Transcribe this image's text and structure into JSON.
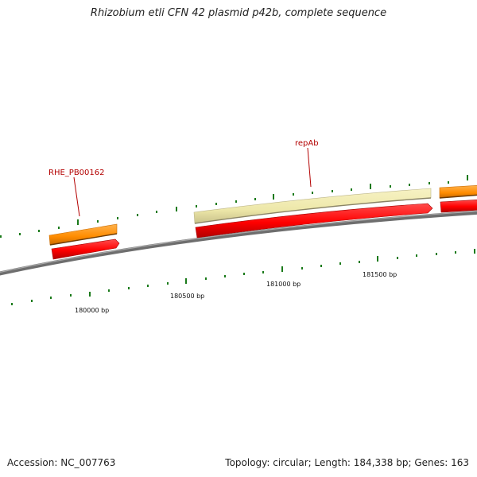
{
  "title": "Rhizobium etli CFN 42 plasmid p42b, complete sequence",
  "footer": {
    "accession": "Accession: NC_007763",
    "summary": "Topology: circular; Length: 184,338 bp; Genes: 163"
  },
  "colors": {
    "backbone": "#808080",
    "cds": "#ff0000",
    "gene": "#ff8c00",
    "repeat": "#eee8aa",
    "tick": "#1a7a1a",
    "gene_label": "#b30000"
  },
  "position_labels": [
    "180000 bp",
    "180500 bp",
    "181000 bp",
    "181500 bp"
  ],
  "features": [
    {
      "type": "gene",
      "label": "RHE_PB00162"
    },
    {
      "type": "CDS"
    },
    {
      "type": "repeat_region",
      "label": "repAb"
    },
    {
      "type": "CDS"
    },
    {
      "type": "gene"
    },
    {
      "type": "CDS"
    }
  ]
}
